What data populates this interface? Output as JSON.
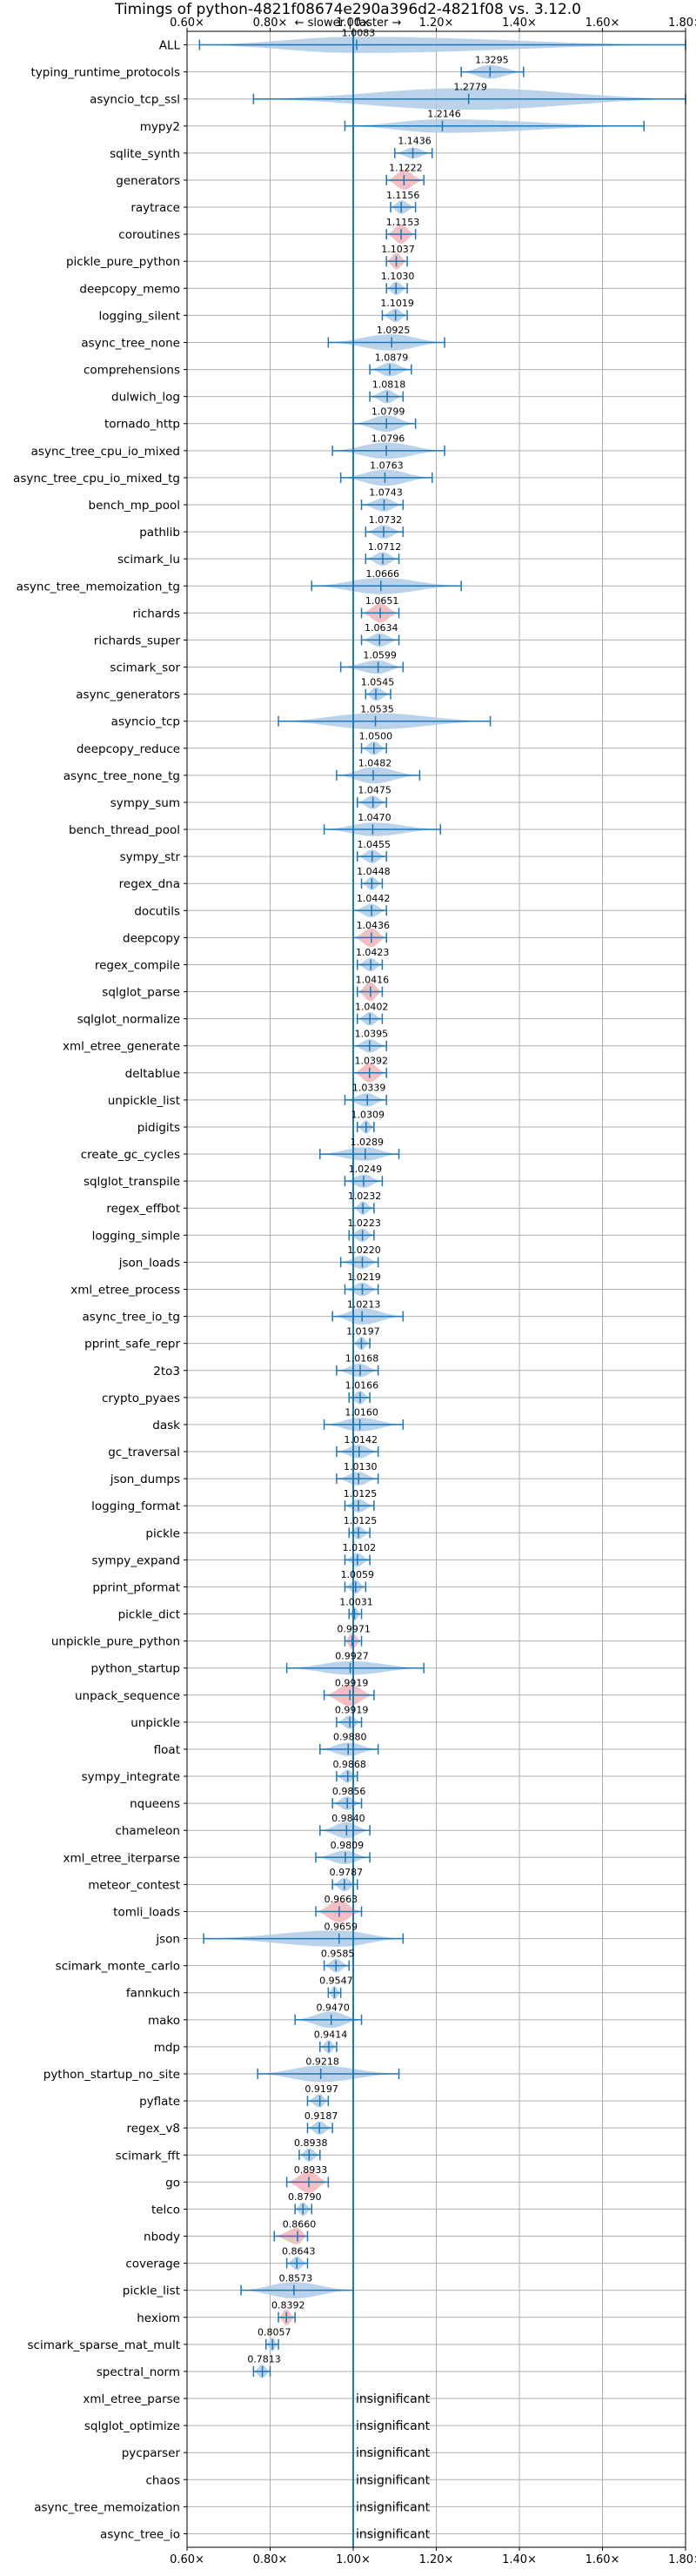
{
  "chart_data": {
    "type": "violin",
    "title": "Timings of python-4821f08674e290a396d2-4821f08 vs. 3.12.0",
    "direction_label": "← slower | faster →",
    "xlim": [
      0.6,
      1.8
    ],
    "x_ticks": [
      0.6,
      0.8,
      1.0,
      1.2,
      1.4,
      1.6,
      1.8
    ],
    "x_tick_labels": [
      "0.60×",
      "0.80×",
      "1.00×",
      "1.20×",
      "1.40×",
      "1.60×",
      "1.80×"
    ],
    "reference_line": 1.0,
    "insignificant_label": "insignificant",
    "benchmarks": [
      {
        "name": "ALL",
        "label": "1.0083",
        "median": 1.0083,
        "min": 0.63,
        "max": 1.8,
        "width": 0.6,
        "highlight": false
      },
      {
        "name": "typing_runtime_protocols",
        "label": "1.3295",
        "median": 1.3295,
        "min": 1.26,
        "max": 1.41,
        "width": 0.5,
        "highlight": false
      },
      {
        "name": "asyncio_tcp_ssl",
        "label": "1.2779",
        "median": 1.2779,
        "min": 0.76,
        "max": 1.8,
        "width": 0.8,
        "highlight": false
      },
      {
        "name": "mypy2",
        "label": "1.2146",
        "median": 1.2146,
        "min": 0.98,
        "max": 1.7,
        "width": 0.5,
        "highlight": false
      },
      {
        "name": "sqlite_synth",
        "label": "1.1436",
        "median": 1.1436,
        "min": 1.1,
        "max": 1.19,
        "width": 0.4,
        "highlight": false
      },
      {
        "name": "generators",
        "label": "1.1222",
        "median": 1.1222,
        "min": 1.08,
        "max": 1.17,
        "width": 0.7,
        "highlight": true
      },
      {
        "name": "raytrace",
        "label": "1.1156",
        "median": 1.1156,
        "min": 1.09,
        "max": 1.15,
        "width": 0.5,
        "highlight": false
      },
      {
        "name": "coroutines",
        "label": "1.1153",
        "median": 1.1153,
        "min": 1.08,
        "max": 1.15,
        "width": 0.7,
        "highlight": true
      },
      {
        "name": "pickle_pure_python",
        "label": "1.1037",
        "median": 1.1037,
        "min": 1.08,
        "max": 1.13,
        "width": 0.6,
        "highlight": true
      },
      {
        "name": "deepcopy_memo",
        "label": "1.1030",
        "median": 1.103,
        "min": 1.08,
        "max": 1.13,
        "width": 0.5,
        "highlight": false
      },
      {
        "name": "logging_silent",
        "label": "1.1019",
        "median": 1.1019,
        "min": 1.07,
        "max": 1.13,
        "width": 0.5,
        "highlight": false
      },
      {
        "name": "async_tree_none",
        "label": "1.0925",
        "median": 1.0925,
        "min": 0.94,
        "max": 1.22,
        "width": 0.6,
        "highlight": false
      },
      {
        "name": "comprehensions",
        "label": "1.0879",
        "median": 1.0879,
        "min": 1.04,
        "max": 1.14,
        "width": 0.5,
        "highlight": false
      },
      {
        "name": "dulwich_log",
        "label": "1.0818",
        "median": 1.0818,
        "min": 1.04,
        "max": 1.12,
        "width": 0.5,
        "highlight": false
      },
      {
        "name": "tornado_http",
        "label": "1.0799",
        "median": 1.0799,
        "min": 1.0,
        "max": 1.15,
        "width": 0.6,
        "highlight": false
      },
      {
        "name": "async_tree_cpu_io_mixed",
        "label": "1.0796",
        "median": 1.0796,
        "min": 0.95,
        "max": 1.22,
        "width": 0.6,
        "highlight": false
      },
      {
        "name": "async_tree_cpu_io_mixed_tg",
        "label": "1.0763",
        "median": 1.0763,
        "min": 0.97,
        "max": 1.19,
        "width": 0.6,
        "highlight": false
      },
      {
        "name": "bench_mp_pool",
        "label": "1.0743",
        "median": 1.0743,
        "min": 1.02,
        "max": 1.12,
        "width": 0.5,
        "highlight": false
      },
      {
        "name": "pathlib",
        "label": "1.0732",
        "median": 1.0732,
        "min": 1.03,
        "max": 1.12,
        "width": 0.5,
        "highlight": false
      },
      {
        "name": "scimark_lu",
        "label": "1.0712",
        "median": 1.0712,
        "min": 1.03,
        "max": 1.11,
        "width": 0.5,
        "highlight": false
      },
      {
        "name": "async_tree_memoization_tg",
        "label": "1.0666",
        "median": 1.0666,
        "min": 0.9,
        "max": 1.26,
        "width": 0.6,
        "highlight": false
      },
      {
        "name": "richards",
        "label": "1.0651",
        "median": 1.0651,
        "min": 1.02,
        "max": 1.11,
        "width": 0.7,
        "highlight": true
      },
      {
        "name": "richards_super",
        "label": "1.0634",
        "median": 1.0634,
        "min": 1.02,
        "max": 1.11,
        "width": 0.5,
        "highlight": false
      },
      {
        "name": "scimark_sor",
        "label": "1.0599",
        "median": 1.0599,
        "min": 0.97,
        "max": 1.12,
        "width": 0.5,
        "highlight": false
      },
      {
        "name": "async_generators",
        "label": "1.0545",
        "median": 1.0545,
        "min": 1.03,
        "max": 1.09,
        "width": 0.5,
        "highlight": false
      },
      {
        "name": "asyncio_tcp",
        "label": "1.0535",
        "median": 1.0535,
        "min": 0.82,
        "max": 1.33,
        "width": 0.6,
        "highlight": false
      },
      {
        "name": "deepcopy_reduce",
        "label": "1.0500",
        "median": 1.05,
        "min": 1.02,
        "max": 1.08,
        "width": 0.5,
        "highlight": false
      },
      {
        "name": "async_tree_none_tg",
        "label": "1.0482",
        "median": 1.0482,
        "min": 0.96,
        "max": 1.16,
        "width": 0.6,
        "highlight": false
      },
      {
        "name": "sympy_sum",
        "label": "1.0475",
        "median": 1.0475,
        "min": 1.01,
        "max": 1.08,
        "width": 0.5,
        "highlight": false
      },
      {
        "name": "bench_thread_pool",
        "label": "1.0470",
        "median": 1.047,
        "min": 0.93,
        "max": 1.21,
        "width": 0.5,
        "highlight": false
      },
      {
        "name": "sympy_str",
        "label": "1.0455",
        "median": 1.0455,
        "min": 1.01,
        "max": 1.08,
        "width": 0.5,
        "highlight": false
      },
      {
        "name": "regex_dna",
        "label": "1.0448",
        "median": 1.0448,
        "min": 1.02,
        "max": 1.07,
        "width": 0.5,
        "highlight": false
      },
      {
        "name": "docutils",
        "label": "1.0442",
        "median": 1.0442,
        "min": 1.0,
        "max": 1.08,
        "width": 0.5,
        "highlight": false
      },
      {
        "name": "deepcopy",
        "label": "1.0436",
        "median": 1.0436,
        "min": 1.0,
        "max": 1.08,
        "width": 0.7,
        "highlight": true
      },
      {
        "name": "regex_compile",
        "label": "1.0423",
        "median": 1.0423,
        "min": 1.01,
        "max": 1.07,
        "width": 0.5,
        "highlight": false
      },
      {
        "name": "sqlglot_parse",
        "label": "1.0416",
        "median": 1.0416,
        "min": 1.01,
        "max": 1.07,
        "width": 0.7,
        "highlight": true
      },
      {
        "name": "sqlglot_normalize",
        "label": "1.0402",
        "median": 1.0402,
        "min": 1.01,
        "max": 1.07,
        "width": 0.5,
        "highlight": false
      },
      {
        "name": "xml_etree_generate",
        "label": "1.0395",
        "median": 1.0395,
        "min": 1.0,
        "max": 1.08,
        "width": 0.5,
        "highlight": false
      },
      {
        "name": "deltablue",
        "label": "1.0392",
        "median": 1.0392,
        "min": 1.0,
        "max": 1.08,
        "width": 0.7,
        "highlight": true
      },
      {
        "name": "unpickle_list",
        "label": "1.0339",
        "median": 1.0339,
        "min": 0.98,
        "max": 1.08,
        "width": 0.5,
        "highlight": false
      },
      {
        "name": "pidigits",
        "label": "1.0309",
        "median": 1.0309,
        "min": 1.01,
        "max": 1.05,
        "width": 0.5,
        "highlight": false
      },
      {
        "name": "create_gc_cycles",
        "label": "1.0289",
        "median": 1.0289,
        "min": 0.92,
        "max": 1.11,
        "width": 0.5,
        "highlight": false
      },
      {
        "name": "sqlglot_transpile",
        "label": "1.0249",
        "median": 1.0249,
        "min": 0.98,
        "max": 1.07,
        "width": 0.5,
        "highlight": false
      },
      {
        "name": "regex_effbot",
        "label": "1.0232",
        "median": 1.0232,
        "min": 1.0,
        "max": 1.05,
        "width": 0.5,
        "highlight": false
      },
      {
        "name": "logging_simple",
        "label": "1.0223",
        "median": 1.0223,
        "min": 0.99,
        "max": 1.05,
        "width": 0.5,
        "highlight": false
      },
      {
        "name": "json_loads",
        "label": "1.0220",
        "median": 1.022,
        "min": 0.97,
        "max": 1.06,
        "width": 0.5,
        "highlight": false
      },
      {
        "name": "xml_etree_process",
        "label": "1.0219",
        "median": 1.0219,
        "min": 0.98,
        "max": 1.06,
        "width": 0.5,
        "highlight": false
      },
      {
        "name": "async_tree_io_tg",
        "label": "1.0213",
        "median": 1.0213,
        "min": 0.95,
        "max": 1.12,
        "width": 0.6,
        "highlight": false
      },
      {
        "name": "pprint_safe_repr",
        "label": "1.0197",
        "median": 1.0197,
        "min": 1.0,
        "max": 1.04,
        "width": 0.5,
        "highlight": false
      },
      {
        "name": "2to3",
        "label": "1.0168",
        "median": 1.0168,
        "min": 0.96,
        "max": 1.06,
        "width": 0.5,
        "highlight": false
      },
      {
        "name": "crypto_pyaes",
        "label": "1.0166",
        "median": 1.0166,
        "min": 0.99,
        "max": 1.04,
        "width": 0.5,
        "highlight": false
      },
      {
        "name": "dask",
        "label": "1.0160",
        "median": 1.016,
        "min": 0.93,
        "max": 1.12,
        "width": 0.5,
        "highlight": false
      },
      {
        "name": "gc_traversal",
        "label": "1.0142",
        "median": 1.0142,
        "min": 0.96,
        "max": 1.06,
        "width": 0.5,
        "highlight": false
      },
      {
        "name": "json_dumps",
        "label": "1.0130",
        "median": 1.013,
        "min": 0.96,
        "max": 1.06,
        "width": 0.5,
        "highlight": false
      },
      {
        "name": "logging_format",
        "label": "1.0125",
        "median": 1.0125,
        "min": 0.98,
        "max": 1.05,
        "width": 0.5,
        "highlight": false
      },
      {
        "name": "pickle",
        "label": "1.0125",
        "median": 1.0125,
        "min": 0.99,
        "max": 1.04,
        "width": 0.5,
        "highlight": false
      },
      {
        "name": "sympy_expand",
        "label": "1.0102",
        "median": 1.0102,
        "min": 0.98,
        "max": 1.04,
        "width": 0.5,
        "highlight": false
      },
      {
        "name": "pprint_pformat",
        "label": "1.0059",
        "median": 1.0059,
        "min": 0.98,
        "max": 1.03,
        "width": 0.5,
        "highlight": false
      },
      {
        "name": "pickle_dict",
        "label": "1.0031",
        "median": 1.0031,
        "min": 0.99,
        "max": 1.02,
        "width": 0.5,
        "highlight": false
      },
      {
        "name": "unpickle_pure_python",
        "label": "0.9971",
        "median": 0.9971,
        "min": 0.98,
        "max": 1.02,
        "width": 0.6,
        "highlight": true
      },
      {
        "name": "python_startup",
        "label": "0.9927",
        "median": 0.9927,
        "min": 0.84,
        "max": 1.17,
        "width": 0.5,
        "highlight": false
      },
      {
        "name": "unpack_sequence",
        "label": "0.9919",
        "median": 0.9919,
        "min": 0.93,
        "max": 1.05,
        "width": 0.8,
        "highlight": true
      },
      {
        "name": "unpickle",
        "label": "0.9919",
        "median": 0.9919,
        "min": 0.96,
        "max": 1.02,
        "width": 0.5,
        "highlight": false
      },
      {
        "name": "float",
        "label": "0.9880",
        "median": 0.988,
        "min": 0.92,
        "max": 1.06,
        "width": 0.5,
        "highlight": false
      },
      {
        "name": "sympy_integrate",
        "label": "0.9868",
        "median": 0.9868,
        "min": 0.96,
        "max": 1.01,
        "width": 0.5,
        "highlight": false
      },
      {
        "name": "nqueens",
        "label": "0.9856",
        "median": 0.9856,
        "min": 0.95,
        "max": 1.02,
        "width": 0.5,
        "highlight": false
      },
      {
        "name": "chameleon",
        "label": "0.9840",
        "median": 0.984,
        "min": 0.92,
        "max": 1.04,
        "width": 0.6,
        "highlight": false
      },
      {
        "name": "xml_etree_iterparse",
        "label": "0.9809",
        "median": 0.9809,
        "min": 0.91,
        "max": 1.04,
        "width": 0.5,
        "highlight": false
      },
      {
        "name": "meteor_contest",
        "label": "0.9787",
        "median": 0.9787,
        "min": 0.95,
        "max": 1.01,
        "width": 0.5,
        "highlight": false
      },
      {
        "name": "tomli_loads",
        "label": "0.9663",
        "median": 0.9663,
        "min": 0.91,
        "max": 1.02,
        "width": 0.8,
        "highlight": true
      },
      {
        "name": "json",
        "label": "0.9659",
        "median": 0.9659,
        "min": 0.64,
        "max": 1.12,
        "width": 0.6,
        "highlight": false
      },
      {
        "name": "scimark_monte_carlo",
        "label": "0.9585",
        "median": 0.9585,
        "min": 0.93,
        "max": 0.99,
        "width": 0.5,
        "highlight": false
      },
      {
        "name": "fannkuch",
        "label": "0.9547",
        "median": 0.9547,
        "min": 0.94,
        "max": 0.97,
        "width": 0.5,
        "highlight": false
      },
      {
        "name": "mako",
        "label": "0.9470",
        "median": 0.947,
        "min": 0.86,
        "max": 1.02,
        "width": 0.6,
        "highlight": false
      },
      {
        "name": "mdp",
        "label": "0.9414",
        "median": 0.9414,
        "min": 0.92,
        "max": 0.96,
        "width": 0.5,
        "highlight": false
      },
      {
        "name": "python_startup_no_site",
        "label": "0.9218",
        "median": 0.9218,
        "min": 0.77,
        "max": 1.11,
        "width": 0.6,
        "highlight": false
      },
      {
        "name": "pyflate",
        "label": "0.9197",
        "median": 0.9197,
        "min": 0.89,
        "max": 0.94,
        "width": 0.5,
        "highlight": false
      },
      {
        "name": "regex_v8",
        "label": "0.9187",
        "median": 0.9187,
        "min": 0.89,
        "max": 0.95,
        "width": 0.5,
        "highlight": false
      },
      {
        "name": "scimark_fft",
        "label": "0.8938",
        "median": 0.8938,
        "min": 0.87,
        "max": 0.92,
        "width": 0.5,
        "highlight": false
      },
      {
        "name": "go",
        "label": "0.8933",
        "median": 0.8933,
        "min": 0.84,
        "max": 0.94,
        "width": 0.8,
        "highlight": true
      },
      {
        "name": "telco",
        "label": "0.8790",
        "median": 0.879,
        "min": 0.86,
        "max": 0.9,
        "width": 0.5,
        "highlight": false
      },
      {
        "name": "nbody",
        "label": "0.8660",
        "median": 0.866,
        "min": 0.81,
        "max": 0.89,
        "width": 0.6,
        "highlight": true
      },
      {
        "name": "coverage",
        "label": "0.8643",
        "median": 0.8643,
        "min": 0.84,
        "max": 0.89,
        "width": 0.5,
        "highlight": false
      },
      {
        "name": "pickle_list",
        "label": "0.8573",
        "median": 0.8573,
        "min": 0.73,
        "max": 1.0,
        "width": 0.6,
        "highlight": false
      },
      {
        "name": "hexiom",
        "label": "0.8392",
        "median": 0.8392,
        "min": 0.82,
        "max": 0.86,
        "width": 0.6,
        "highlight": true
      },
      {
        "name": "scimark_sparse_mat_mult",
        "label": "0.8057",
        "median": 0.8057,
        "min": 0.79,
        "max": 0.82,
        "width": 0.5,
        "highlight": false
      },
      {
        "name": "spectral_norm",
        "label": "0.7813",
        "median": 0.7813,
        "min": 0.76,
        "max": 0.8,
        "width": 0.5,
        "highlight": false
      },
      {
        "name": "xml_etree_parse",
        "label": "",
        "median": null,
        "insignificant": true
      },
      {
        "name": "sqlglot_optimize",
        "label": "",
        "median": null,
        "insignificant": true
      },
      {
        "name": "pycparser",
        "label": "",
        "median": null,
        "insignificant": true
      },
      {
        "name": "chaos",
        "label": "",
        "median": null,
        "insignificant": true
      },
      {
        "name": "async_tree_memoization",
        "label": "",
        "median": null,
        "insignificant": true
      },
      {
        "name": "async_tree_io",
        "label": "",
        "median": null,
        "insignificant": true
      }
    ],
    "colors": {
      "violin": "#aecbe6",
      "violin_highlight": "#f2b4b8",
      "line": "#1f77b4",
      "grid": "#b0b0b0"
    },
    "grid": true
  }
}
